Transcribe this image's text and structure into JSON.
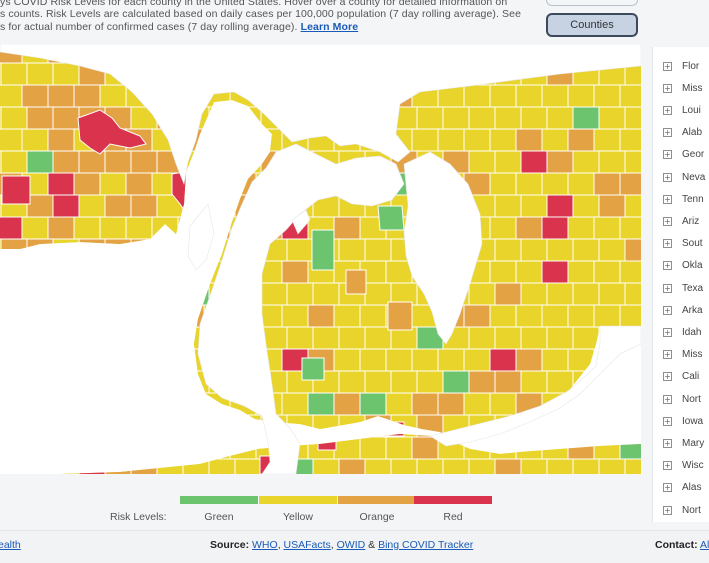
{
  "description": {
    "line1": "ys COVID Risk Levels for each county in the United States. Hover over a county for detailed information on",
    "line2": "s counts. Risk Levels are calculated based on daily cases per 100,000 population (7 day rolling average). See",
    "line3": "s for actual number of confirmed cases (7 day rolling average).",
    "learn_more": "Learn More"
  },
  "toggle": {
    "counties_label": "Counties"
  },
  "legend": {
    "label": "Risk Levels:",
    "items": [
      {
        "name": "Green",
        "color": "#6cc46e"
      },
      {
        "name": "Yellow",
        "color": "#e8d42a"
      },
      {
        "name": "Orange",
        "color": "#e3a244"
      },
      {
        "name": "Red",
        "color": "#d9334d"
      }
    ]
  },
  "colors": {
    "green": "#6cc46e",
    "yellow": "#e8d42a",
    "orange": "#e3a244",
    "red": "#d9334d",
    "water": "#ffffff",
    "border": "#ffffff"
  },
  "sidebar": {
    "states": [
      "Flor",
      "Miss",
      "Loui",
      "Alab",
      "Geor",
      "Neva",
      "Tenn",
      "Ariz",
      "Sout",
      "Okla",
      "Texa",
      "Arka",
      "Idah",
      "Miss",
      "Cali",
      "Nort",
      "Iowa",
      "Mary",
      "Wisc",
      "Alas",
      "Nort"
    ]
  },
  "footer": {
    "left_link": "ealth",
    "source_label": "Source:",
    "source_links": [
      "WHO",
      "USAFacts",
      "OWID"
    ],
    "source_amp": "&",
    "source_last": "Bing COVID Tracker",
    "contact_label": "Contact:",
    "contact_link": "All"
  }
}
